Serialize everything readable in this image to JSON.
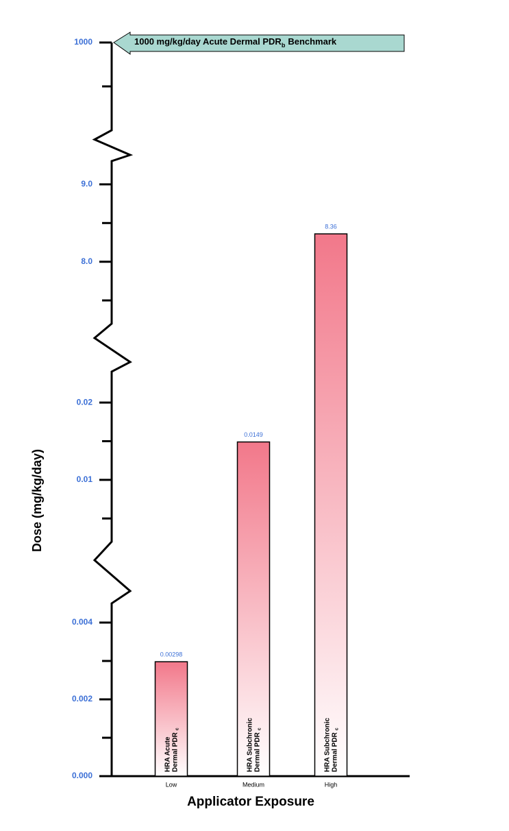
{
  "chart_data": {
    "type": "bar",
    "y_label": "Dose (mg/kg/day)",
    "x_label": "Applicator Exposure",
    "categories": [
      "Low",
      "Medium",
      "High"
    ],
    "values": [
      0.00298,
      0.0149,
      8.36
    ],
    "color": "#f2788a",
    "inner_labels": [
      {
        "lines": [
          "HRA Acute",
          "Dermal PDR"
        ],
        "sub": "c"
      },
      {
        "lines": [
          "HRA Subchronic",
          "Dermal PDR"
        ],
        "sub": "c"
      },
      {
        "lines": [
          "HRA Subchronic",
          "Dermal PDR"
        ],
        "sub": "c"
      }
    ],
    "axis_breaks": true,
    "segments": [
      {
        "ylim": [
          0,
          0.0045
        ],
        "yticks": [
          {
            "value": 0,
            "label": "0.000"
          },
          0.002,
          0.004
        ],
        "minor_yticks": [
          0.001,
          0.003
        ]
      },
      {
        "ylim": [
          0.002,
          0.024
        ],
        "yticks": [
          0.01,
          0.02
        ],
        "minor_yticks": [
          0.005,
          0.015
        ]
      },
      {
        "ylim": [
          7.2,
          9.3
        ],
        "yticks": [
          {
            "value": 8,
            "label": "8.0"
          },
          {
            "value": 9,
            "label": "9.0"
          }
        ],
        "minor_yticks": [
          7.5,
          8.5
        ]
      },
      {
        "ylim": [
          990,
          1000
        ],
        "yticks": [
          1000
        ],
        "minor_yticks": [
          995
        ]
      }
    ],
    "annotation": {
      "value": 1000,
      "text": "1000 mg/kg/day Acute Dermal PDR",
      "sub": "b",
      "suffix": "Benchmark"
    }
  }
}
